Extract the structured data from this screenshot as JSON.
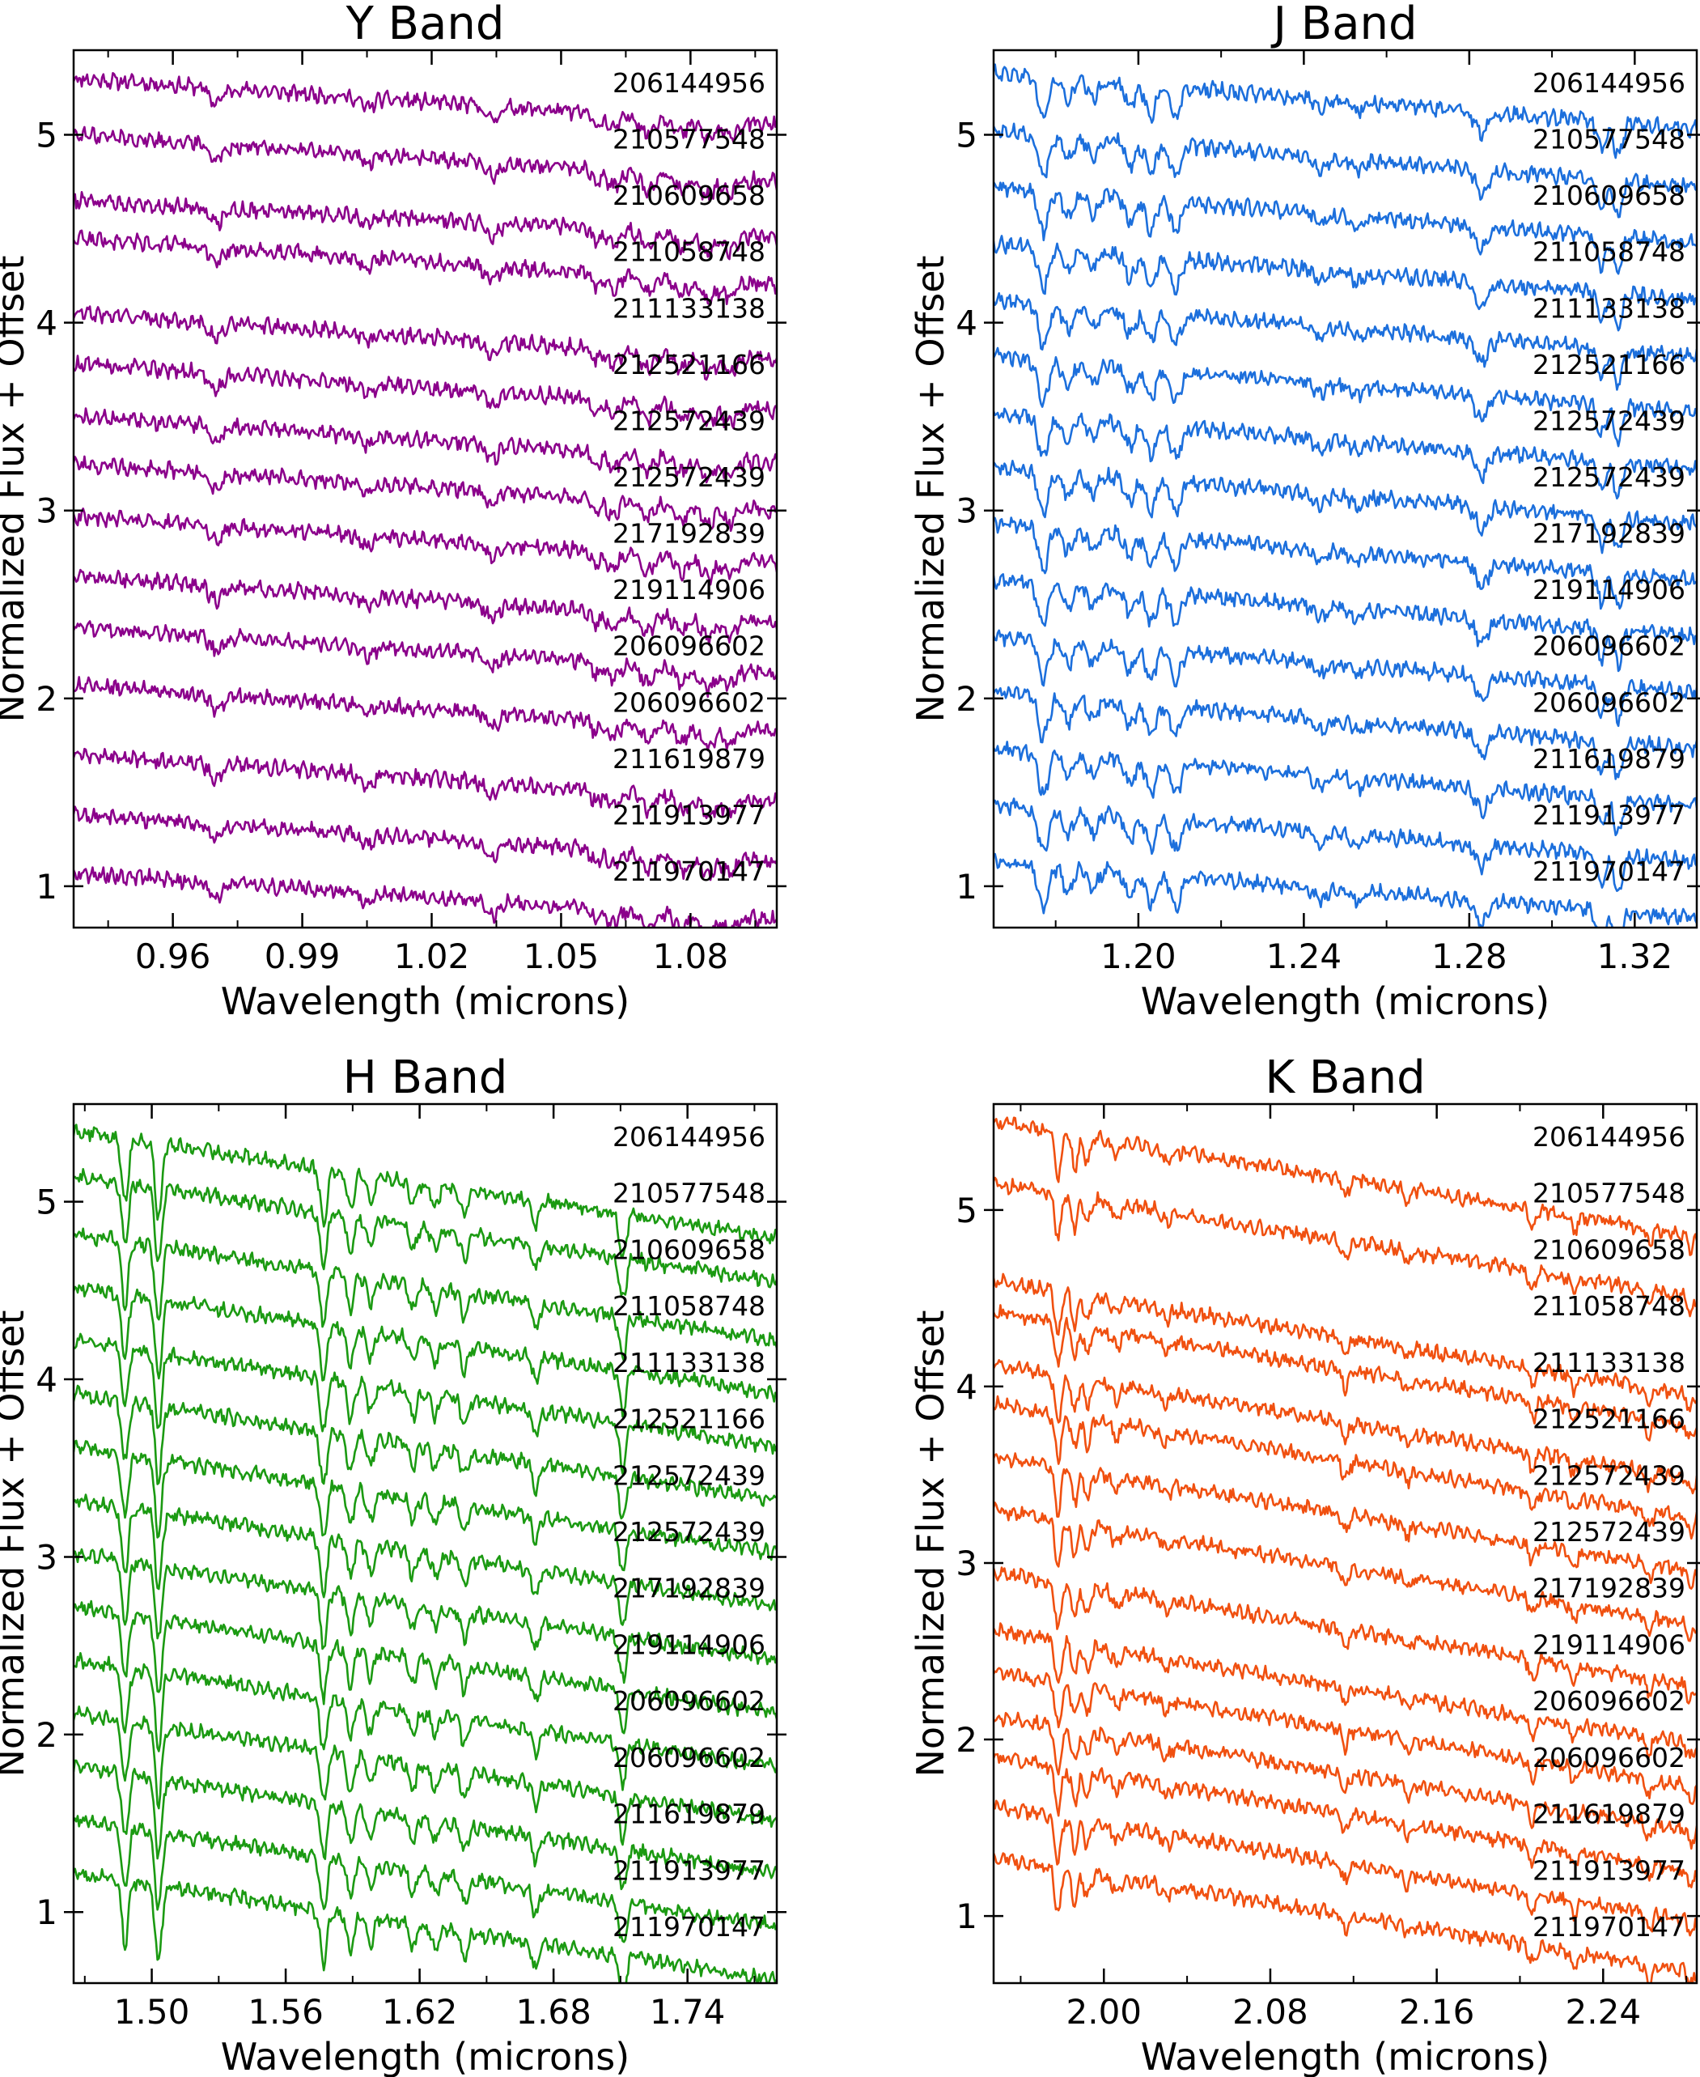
{
  "chart_data": [
    {
      "type": "line",
      "title": "Y Band",
      "xlabel": "Wavelength (microns)",
      "ylabel": "Normalized Flux + Offset",
      "xlim": [
        0.937,
        1.1
      ],
      "ylim": [
        0.78,
        5.45
      ],
      "xticks": [
        0.96,
        0.99,
        1.02,
        1.05,
        1.08
      ],
      "xtick_labels": [
        "0.96",
        "0.99",
        "1.02",
        "1.05",
        "1.08"
      ],
      "yticks": [
        1,
        2,
        3,
        4,
        5
      ],
      "ytick_labels": [
        "1",
        "2",
        "3",
        "4",
        "5"
      ],
      "grid": false,
      "color": "#8B008B",
      "series": [
        {
          "name": "206144956",
          "offset": 5.3,
          "slope": -0.25
        },
        {
          "name": "210577548",
          "offset": 5.0,
          "slope": -0.25
        },
        {
          "name": "210609658",
          "offset": 4.65,
          "slope": -0.2
        },
        {
          "name": "211058748",
          "offset": 4.45,
          "slope": -0.25
        },
        {
          "name": "211133138",
          "offset": 4.05,
          "slope": -0.25
        },
        {
          "name": "212521166",
          "offset": 3.78,
          "slope": -0.25
        },
        {
          "name": "212572439",
          "offset": 3.5,
          "slope": -0.25
        },
        {
          "name": "212572439",
          "offset": 3.25,
          "slope": -0.25
        },
        {
          "name": "217192839",
          "offset": 2.97,
          "slope": -0.25
        },
        {
          "name": "219114906",
          "offset": 2.65,
          "slope": -0.25
        },
        {
          "name": "206096602",
          "offset": 2.38,
          "slope": -0.25
        },
        {
          "name": "206096602",
          "offset": 2.07,
          "slope": -0.25
        },
        {
          "name": "211619879",
          "offset": 1.7,
          "slope": -0.25
        },
        {
          "name": "211913977",
          "offset": 1.38,
          "slope": -0.25
        },
        {
          "name": "211970147",
          "offset": 1.07,
          "slope": -0.25
        }
      ]
    },
    {
      "type": "line",
      "title": "J Band",
      "xlabel": "Wavelength (microns)",
      "ylabel": "Normalized Flux + Offset",
      "xlim": [
        1.165,
        1.335
      ],
      "ylim": [
        0.78,
        5.45
      ],
      "xticks": [
        1.2,
        1.24,
        1.28,
        1.32
      ],
      "xtick_labels": [
        "1.20",
        "1.24",
        "1.28",
        "1.32"
      ],
      "yticks": [
        1,
        2,
        3,
        4,
        5
      ],
      "ytick_labels": [
        "1",
        "2",
        "3",
        "4",
        "5"
      ],
      "grid": false,
      "color": "#1c6fdc",
      "series": [
        {
          "name": "206144956",
          "offset": 5.33,
          "slope": -0.3
        },
        {
          "name": "210577548",
          "offset": 5.02,
          "slope": -0.3
        },
        {
          "name": "210609658",
          "offset": 4.72,
          "slope": -0.3
        },
        {
          "name": "211058748",
          "offset": 4.42,
          "slope": -0.3
        },
        {
          "name": "211133138",
          "offset": 4.12,
          "slope": -0.3
        },
        {
          "name": "212521166",
          "offset": 3.82,
          "slope": -0.3
        },
        {
          "name": "212572439",
          "offset": 3.52,
          "slope": -0.3
        },
        {
          "name": "212572439",
          "offset": 3.23,
          "slope": -0.3
        },
        {
          "name": "217192839",
          "offset": 2.93,
          "slope": -0.3
        },
        {
          "name": "219114906",
          "offset": 2.63,
          "slope": -0.3
        },
        {
          "name": "206096602",
          "offset": 2.33,
          "slope": -0.3
        },
        {
          "name": "206096602",
          "offset": 2.03,
          "slope": -0.3
        },
        {
          "name": "211619879",
          "offset": 1.73,
          "slope": -0.3
        },
        {
          "name": "211913977",
          "offset": 1.43,
          "slope": -0.3
        },
        {
          "name": "211970147",
          "offset": 1.13,
          "slope": -0.3
        }
      ]
    },
    {
      "type": "line",
      "title": "H Band",
      "xlabel": "Wavelength (microns)",
      "ylabel": "Normalized Flux + Offset",
      "xlim": [
        1.465,
        1.78
      ],
      "ylim": [
        0.6,
        5.55
      ],
      "xticks": [
        1.5,
        1.56,
        1.62,
        1.68,
        1.74
      ],
      "xtick_labels": [
        "1.50",
        "1.56",
        "1.62",
        "1.68",
        "1.74"
      ],
      "yticks": [
        1,
        2,
        3,
        4,
        5
      ],
      "ytick_labels": [
        "1",
        "2",
        "3",
        "4",
        "5"
      ],
      "grid": false,
      "color": "#1b9a12",
      "series": [
        {
          "name": "206144956",
          "offset": 5.4,
          "slope": -0.6
        },
        {
          "name": "210577548",
          "offset": 5.15,
          "slope": -0.6
        },
        {
          "name": "210609658",
          "offset": 4.82,
          "slope": -0.6
        },
        {
          "name": "211058748",
          "offset": 4.52,
          "slope": -0.6
        },
        {
          "name": "211133138",
          "offset": 4.22,
          "slope": -0.6
        },
        {
          "name": "212521166",
          "offset": 3.92,
          "slope": -0.6
        },
        {
          "name": "212572439",
          "offset": 3.62,
          "slope": -0.6
        },
        {
          "name": "212572439",
          "offset": 3.32,
          "slope": -0.6
        },
        {
          "name": "217192839",
          "offset": 3.02,
          "slope": -0.6
        },
        {
          "name": "219114906",
          "offset": 2.72,
          "slope": -0.6
        },
        {
          "name": "206096602",
          "offset": 2.42,
          "slope": -0.6
        },
        {
          "name": "206096602",
          "offset": 2.12,
          "slope": -0.6
        },
        {
          "name": "211619879",
          "offset": 1.82,
          "slope": -0.6
        },
        {
          "name": "211913977",
          "offset": 1.52,
          "slope": -0.6
        },
        {
          "name": "211970147",
          "offset": 1.22,
          "slope": -0.6
        }
      ]
    },
    {
      "type": "line",
      "title": "K Band",
      "xlabel": "Wavelength (microns)",
      "ylabel": "Normalized Flux + Offset",
      "xlim": [
        1.947,
        2.285
      ],
      "ylim": [
        0.62,
        5.6
      ],
      "xticks": [
        2.0,
        2.08,
        2.16,
        2.24
      ],
      "xtick_labels": [
        "2.00",
        "2.08",
        "2.16",
        "2.24"
      ],
      "yticks": [
        1,
        2,
        3,
        4,
        5
      ],
      "ytick_labels": [
        "1",
        "2",
        "3",
        "4",
        "5"
      ],
      "grid": false,
      "color": "#f05010",
      "series": [
        {
          "name": "206144956",
          "offset": 5.5,
          "slope": -0.65
        },
        {
          "name": "210577548",
          "offset": 5.15,
          "slope": -0.65
        },
        {
          "name": "210609658",
          "offset": 4.6,
          "slope": -0.65
        },
        {
          "name": "211058748",
          "offset": 4.42,
          "slope": -0.65
        },
        {
          "name": "211133138",
          "offset": 4.12,
          "slope": -0.65
        },
        {
          "name": "212521166",
          "offset": 3.9,
          "slope": -0.65
        },
        {
          "name": "212572439",
          "offset": 3.6,
          "slope": -0.65
        },
        {
          "name": "212572439",
          "offset": 3.3,
          "slope": -0.65
        },
        {
          "name": "217192839",
          "offset": 2.95,
          "slope": -0.65
        },
        {
          "name": "219114906",
          "offset": 2.62,
          "slope": -0.65
        },
        {
          "name": "206096602",
          "offset": 2.38,
          "slope": -0.65
        },
        {
          "name": "206096602",
          "offset": 2.13,
          "slope": -0.65
        },
        {
          "name": "211619879",
          "offset": 1.9,
          "slope": -0.65
        },
        {
          "name": "211913977",
          "offset": 1.62,
          "slope": -0.65
        },
        {
          "name": "211970147",
          "offset": 1.33,
          "slope": -0.65
        }
      ]
    }
  ]
}
